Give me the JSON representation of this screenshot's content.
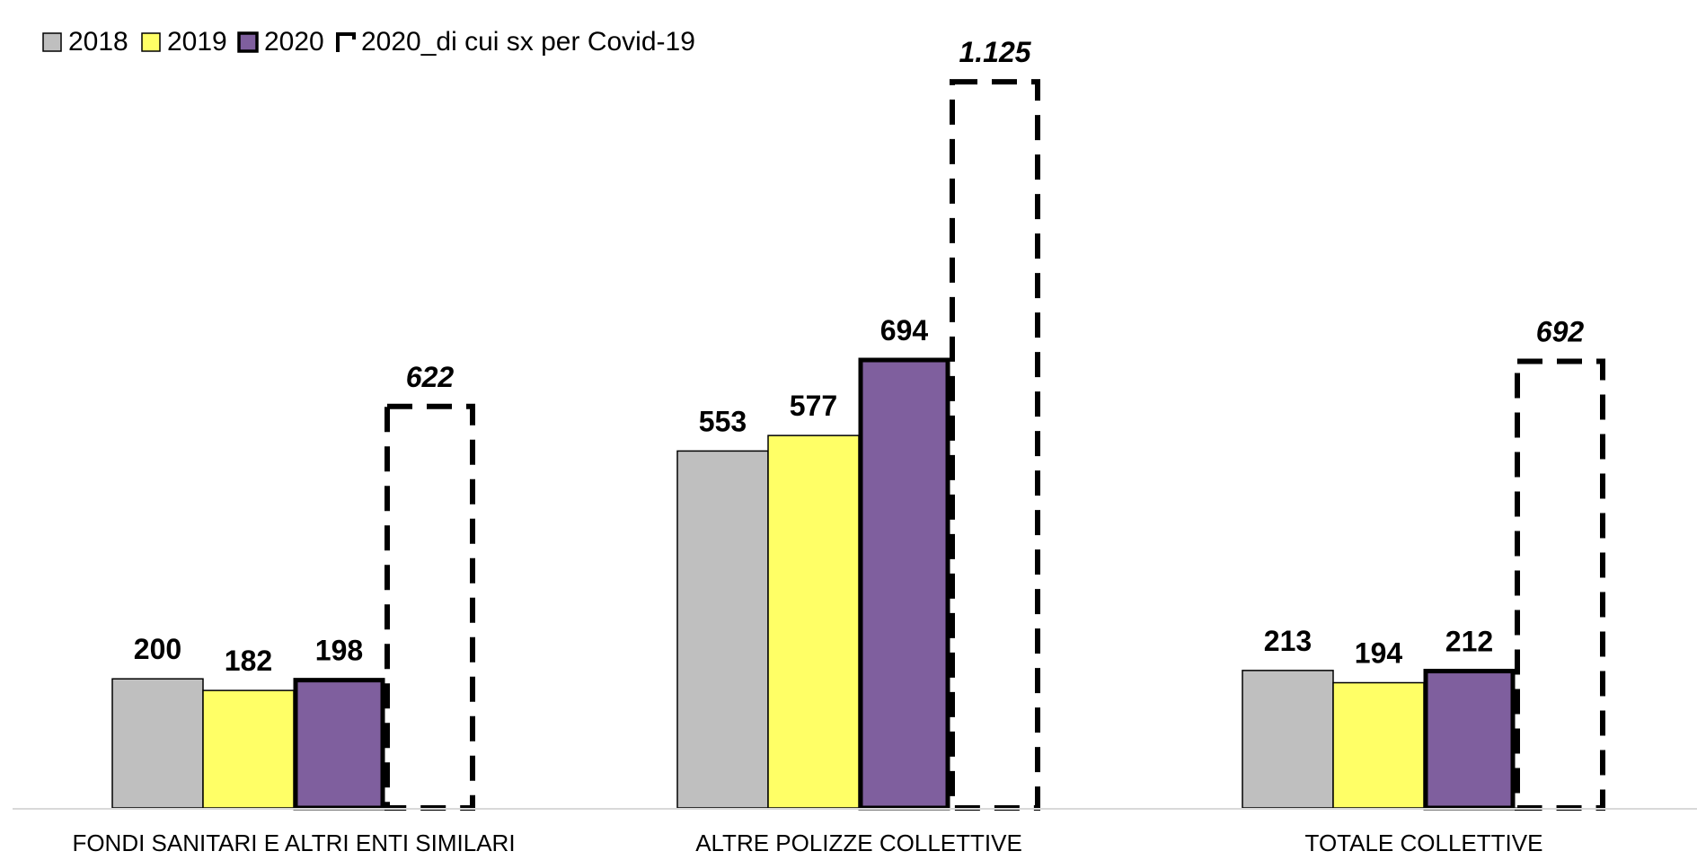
{
  "chart_data": {
    "type": "bar",
    "categories": [
      "FONDI SANITARI E ALTRI ENTI SIMILARI",
      "ALTRE POLIZZE COLLETTIVE",
      "TOTALE COLLETTIVE"
    ],
    "series": [
      {
        "name": "2018",
        "values": [
          200,
          553,
          213
        ],
        "labels": [
          "200",
          "553",
          "213"
        ],
        "color": "#BFBFBF",
        "style": "solid-thin"
      },
      {
        "name": "2019",
        "values": [
          182,
          577,
          194
        ],
        "labels": [
          "182",
          "577",
          "194"
        ],
        "color": "#FFFF66",
        "style": "solid-thin"
      },
      {
        "name": "2020",
        "values": [
          198,
          694,
          212
        ],
        "labels": [
          "198",
          "694",
          "212"
        ],
        "color": "#7F5F9E",
        "style": "solid-thick"
      },
      {
        "name": "2020_di cui sx per Covid-19",
        "values": [
          622,
          1125,
          692
        ],
        "labels": [
          "622",
          "1.125",
          "692"
        ],
        "color": "#000000",
        "style": "dashed-outline"
      }
    ],
    "title": "",
    "xlabel": "",
    "ylabel": "",
    "ylim": [
      0,
      1150
    ],
    "grid": false,
    "legend_position": "top-left"
  }
}
